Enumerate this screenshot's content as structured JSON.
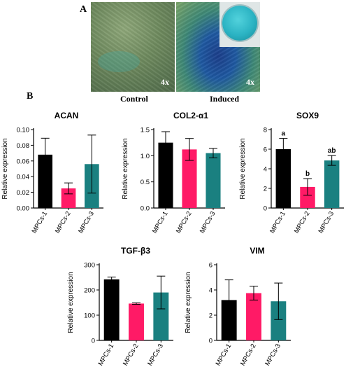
{
  "panel_a": {
    "letter": "A",
    "control_caption": "Control",
    "induced_caption": "Induced",
    "control_mag": "4x",
    "induced_mag": "4x"
  },
  "panel_b": {
    "letter": "B"
  },
  "colors": {
    "MPCs-1": "#000000",
    "MPCs-2": "#ff1a66",
    "MPCs-3": "#1a8080"
  },
  "chart_data": [
    {
      "type": "bar",
      "title": "ACAN",
      "ylabel": "Relative expression",
      "categories": [
        "MPCs-1",
        "MPCs-2",
        "MPCs-3"
      ],
      "values": [
        0.068,
        0.025,
        0.056
      ],
      "errors": [
        0.021,
        0.007,
        0.037
      ],
      "ylim": [
        0,
        0.1
      ],
      "yticks": [
        0.0,
        0.02,
        0.04,
        0.06,
        0.08,
        0.1
      ],
      "ytick_labels": [
        "0.00",
        "0.02",
        "0.04",
        "0.06",
        "0.08",
        "0.10"
      ],
      "annotations": []
    },
    {
      "type": "bar",
      "title": "COL2-α1",
      "ylabel": "Relative expression",
      "categories": [
        "MPCs-1",
        "MPCs-2",
        "MPCs-3"
      ],
      "values": [
        1.25,
        1.12,
        1.05
      ],
      "errors": [
        0.21,
        0.21,
        0.09
      ],
      "ylim": [
        0,
        1.5
      ],
      "yticks": [
        0.0,
        0.5,
        1.0,
        1.5
      ],
      "ytick_labels": [
        "0.0",
        "0.5",
        "1.0",
        "1.5"
      ],
      "annotations": []
    },
    {
      "type": "bar",
      "title": "SOX9",
      "ylabel": "Relative expression",
      "categories": [
        "MPCs-1",
        "MPCs-2",
        "MPCs-3"
      ],
      "values": [
        6.0,
        2.15,
        4.85
      ],
      "errors": [
        1.1,
        0.85,
        0.5
      ],
      "ylim": [
        0,
        8
      ],
      "yticks": [
        0,
        2,
        4,
        6,
        8
      ],
      "ytick_labels": [
        "0",
        "2",
        "4",
        "6",
        "8"
      ],
      "annotations": [
        "a",
        "b",
        "ab"
      ]
    },
    {
      "type": "bar",
      "title": "TGF-β3",
      "ylabel": "Relative expression",
      "categories": [
        "MPCs-1",
        "MPCs-2",
        "MPCs-3"
      ],
      "values": [
        242,
        146,
        190
      ],
      "errors": [
        9,
        3,
        65
      ],
      "ylim": [
        0,
        300
      ],
      "yticks": [
        0,
        100,
        200,
        300
      ],
      "ytick_labels": [
        "0",
        "100",
        "200",
        "300"
      ],
      "annotations": []
    },
    {
      "type": "bar",
      "title": "VIM",
      "ylabel": "Relative expression",
      "categories": [
        "MPCs-1",
        "MPCs-2",
        "MPCs-3"
      ],
      "values": [
        3.2,
        3.75,
        3.1
      ],
      "errors": [
        1.6,
        0.55,
        1.45
      ],
      "ylim": [
        0,
        6
      ],
      "yticks": [
        0,
        2,
        4,
        6
      ],
      "ytick_labels": [
        "0",
        "2",
        "4",
        "6"
      ],
      "annotations": []
    }
  ]
}
